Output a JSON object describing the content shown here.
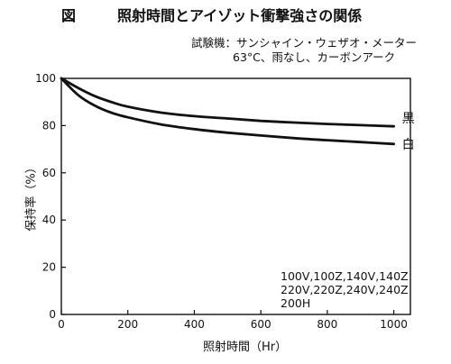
{
  "figure": {
    "label": "図",
    "title": "照射時間とアイゾット衝撃強さの関係",
    "conditions_line1": "試験機：サンシャイン・ウェザオ・メーター",
    "conditions_line2": "63°C、雨なし、カーボンアーク"
  },
  "chart_data": {
    "type": "line",
    "title": "照射時間とアイゾット衝撃強さの関係",
    "xlabel": "照射時間（Hr）",
    "ylabel": "保持率（%）",
    "xlim": [
      0,
      1050
    ],
    "ylim": [
      0,
      100
    ],
    "xticks": [
      0,
      200,
      400,
      600,
      800,
      1000
    ],
    "yticks": [
      0,
      20,
      40,
      60,
      80,
      100
    ],
    "grid": false,
    "series": [
      {
        "name": "黒",
        "x": [
          0,
          50,
          100,
          150,
          200,
          300,
          400,
          500,
          600,
          700,
          800,
          900,
          1000
        ],
        "values": [
          100,
          96,
          92.5,
          90,
          88,
          85.5,
          84,
          83,
          82,
          81.3,
          80.7,
          80.2,
          79.7
        ],
        "color": "#111111"
      },
      {
        "name": "白",
        "x": [
          0,
          50,
          100,
          150,
          200,
          300,
          400,
          500,
          600,
          700,
          800,
          900,
          1000
        ],
        "values": [
          100,
          93,
          88.5,
          85.5,
          83.5,
          80.5,
          78.5,
          77,
          75.8,
          74.7,
          73.8,
          73,
          72.2
        ],
        "color": "#111111"
      }
    ],
    "annotation_lines": [
      "100V,100Z,140V,140Z",
      "220V,220Z,240V,240Z",
      "200H"
    ]
  }
}
